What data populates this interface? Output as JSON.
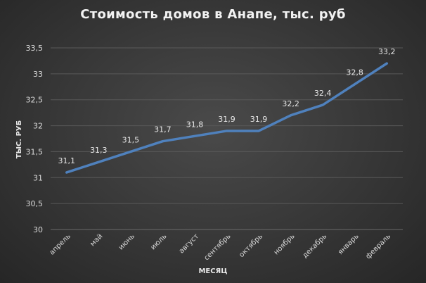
{
  "chart_data": {
    "type": "line",
    "title": "Стоимость домов в Анапе, тыс. руб",
    "xlabel": "МЕСЯЦ",
    "ylabel": "ТЫС. РУБ",
    "categories": [
      "апрель",
      "май",
      "июнь",
      "июль",
      "август",
      "сентябрь",
      "октябрь",
      "ноябрь",
      "декабрь",
      "январь",
      "февраль"
    ],
    "series": [
      {
        "name": "Стоимость",
        "values": [
          31.1,
          31.3,
          31.5,
          31.7,
          31.8,
          31.9,
          31.9,
          32.2,
          32.4,
          32.8,
          33.2
        ],
        "color": "#4f81bd"
      }
    ],
    "data_labels": [
      "31,1",
      "31,3",
      "31,5",
      "31,7",
      "31,8",
      "31,9",
      "31,9",
      "32,2",
      "32,4",
      "32,8",
      "33,2"
    ],
    "yticks": [
      "30",
      "30,5",
      "31",
      "31,5",
      "32",
      "32,5",
      "33",
      "33,5"
    ],
    "ylim": [
      30,
      33.5
    ],
    "grid": true,
    "legend": "none"
  }
}
